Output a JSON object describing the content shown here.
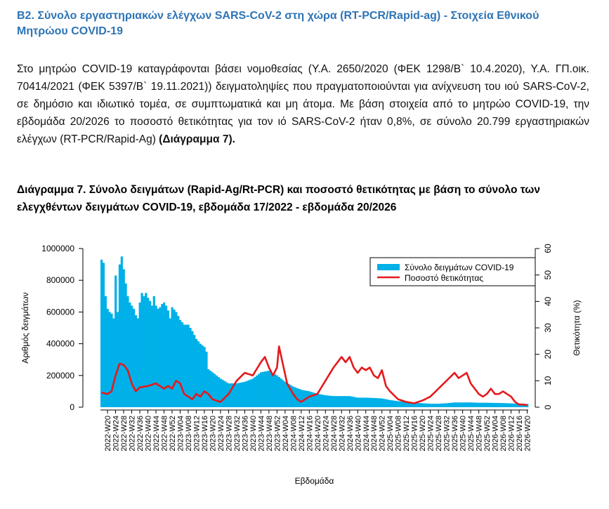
{
  "heading": "B2. Σύνολο εργαστηριακών ελέγχων SARS-CoV-2 στη χώρα (RT-PCR/Rapid-ag)  - Στοιχεία Εθνικού Μητρώου COVID-19",
  "paragraph": {
    "text": "Στο μητρώο COVID-19 καταγράφονται βάσει νομοθεσίας (Υ.Α. 2650/2020 (ΦΕΚ 1298/Β` 10.4.2020), Υ.Α. ΓΠ.οικ. 70414/2021 (ΦΕΚ 5397/Β` 19.11.2021)) δειγματοληψίες που πραγματοποιούνται για ανίχνευση του ιού SARS-CoV-2, σε δημόσιο και ιδιωτικό τομέα, σε συμπτωματικά και μη άτομα. Με βάση στοιχεία από το μητρώο COVID-19, την εβδομάδα 20/2026 το ποσοστό θετικότητας για τον ιό SARS-CoV-2 ήταν 0,8%, σε σύνολο 20.799 εργαστηριακών ελέγχων (RT-PCR/Rapid-Ag) ",
    "reference": "(Διάγραμμα 7)."
  },
  "caption": "Διάγραμμα 7. Σύνολο δειγμάτων (Rapid-Ag/Rt-PCR) και ποσοστό θετικότητας με βάση το σύνολο των ελεγχθέντων δειγμάτων COVID-19, εβδομάδα 17/2022 - εβδομάδα 20/2026",
  "chart_data": {
    "type": "bar+line",
    "xlabel": "Εβδομάδα",
    "ylabel_left": "Αριθμός δειγμάτων",
    "ylabel_right": "Θετικότητα (%)",
    "ylim_left": [
      0,
      1000000
    ],
    "ylim_right": [
      0,
      60
    ],
    "yticks_left": [
      "0",
      "200000",
      "400000",
      "600000",
      "800000",
      "1000000"
    ],
    "yticks_right": [
      "0",
      "10",
      "20",
      "30",
      "40",
      "50",
      "60"
    ],
    "legend_position": "top-right",
    "legend": [
      "Σύνολο δειγμάτων COVID-19",
      "Ποσοστό θετικότητας"
    ],
    "colors": {
      "bars": "#00b0e8",
      "line": "#e41a1c"
    },
    "x_tick_labels": [
      "2022-W20",
      "2022-W24",
      "2022-W28",
      "2022-W32",
      "2022-W36",
      "2022-W40",
      "2022-W44",
      "2022-W48",
      "2022-W52",
      "2023-W04",
      "2023-W08",
      "2023-W12",
      "2023-W16",
      "2023-W20",
      "2023-W24",
      "2023-W28",
      "2023-W32",
      "2023-W36",
      "2023-W40",
      "2023-W44",
      "2023-W48",
      "2023-W52",
      "2024-W04",
      "2024-W08",
      "2024-W12",
      "2024-W16",
      "2024-W20",
      "2024-W24",
      "2024-W28",
      "2024-W32",
      "2024-W36",
      "2024-W40",
      "2024-W44",
      "2024-W48",
      "2024-W52",
      "2025-W04",
      "2025-W08",
      "2025-W12",
      "2025-W16",
      "2025-W20",
      "2025-W24",
      "2025-W28",
      "2025-W32",
      "2025-W36",
      "2025-W40",
      "2025-W44",
      "2025-W48",
      "2025-W52",
      "2026-W04",
      "2026-W08",
      "2026-W12",
      "2026-W16",
      "2026-W20"
    ],
    "first_week": "2022-W17",
    "last_week": "2026-W20",
    "samples_anchors": [
      [
        "2022-W17",
        930000
      ],
      [
        "2022-W18",
        910000
      ],
      [
        "2022-W19",
        700000
      ],
      [
        "2022-W20",
        620000
      ],
      [
        "2022-W21",
        600000
      ],
      [
        "2022-W22",
        590000
      ],
      [
        "2022-W23",
        560000
      ],
      [
        "2022-W24",
        830000
      ],
      [
        "2022-W25",
        600000
      ],
      [
        "2022-W26",
        900000
      ],
      [
        "2022-W27",
        950000
      ],
      [
        "2022-W28",
        870000
      ],
      [
        "2022-W29",
        780000
      ],
      [
        "2022-W30",
        700000
      ],
      [
        "2022-W31",
        660000
      ],
      [
        "2022-W32",
        640000
      ],
      [
        "2022-W33",
        620000
      ],
      [
        "2022-W34",
        580000
      ],
      [
        "2022-W35",
        560000
      ],
      [
        "2022-W36",
        660000
      ],
      [
        "2022-W37",
        720000
      ],
      [
        "2022-W38",
        700000
      ],
      [
        "2022-W39",
        720000
      ],
      [
        "2022-W40",
        690000
      ],
      [
        "2022-W41",
        670000
      ],
      [
        "2022-W42",
        640000
      ],
      [
        "2022-W43",
        700000
      ],
      [
        "2022-W44",
        640000
      ],
      [
        "2022-W45",
        620000
      ],
      [
        "2022-W46",
        630000
      ],
      [
        "2022-W47",
        650000
      ],
      [
        "2022-W48",
        660000
      ],
      [
        "2022-W49",
        640000
      ],
      [
        "2022-W50",
        610000
      ],
      [
        "2022-W51",
        560000
      ],
      [
        "2022-W52",
        630000
      ],
      [
        "2023-W02",
        600000
      ],
      [
        "2023-W04",
        550000
      ],
      [
        "2023-W06",
        520000
      ],
      [
        "2023-W08",
        520000
      ],
      [
        "2023-W10",
        480000
      ],
      [
        "2023-W12",
        430000
      ],
      [
        "2023-W14",
        400000
      ],
      [
        "2023-W16",
        380000
      ],
      [
        "2023-W17",
        350000
      ],
      [
        "2023-W18",
        240000
      ],
      [
        "2023-W20",
        220000
      ],
      [
        "2023-W24",
        180000
      ],
      [
        "2023-W28",
        150000
      ],
      [
        "2023-W32",
        150000
      ],
      [
        "2023-W36",
        160000
      ],
      [
        "2023-W40",
        180000
      ],
      [
        "2023-W44",
        220000
      ],
      [
        "2023-W48",
        230000
      ],
      [
        "2023-W52",
        200000
      ],
      [
        "2024-W04",
        160000
      ],
      [
        "2024-W08",
        130000
      ],
      [
        "2024-W12",
        110000
      ],
      [
        "2024-W16",
        100000
      ],
      [
        "2024-W20",
        85000
      ],
      [
        "2024-W24",
        75000
      ],
      [
        "2024-W28",
        70000
      ],
      [
        "2024-W32",
        70000
      ],
      [
        "2024-W36",
        70000
      ],
      [
        "2024-W40",
        60000
      ],
      [
        "2024-W44",
        60000
      ],
      [
        "2024-W48",
        58000
      ],
      [
        "2024-W52",
        55000
      ],
      [
        "2025-W04",
        45000
      ],
      [
        "2025-W08",
        38000
      ],
      [
        "2025-W12",
        35000
      ],
      [
        "2025-W16",
        28000
      ],
      [
        "2025-W20",
        25000
      ],
      [
        "2025-W24",
        22000
      ],
      [
        "2025-W28",
        22000
      ],
      [
        "2025-W32",
        25000
      ],
      [
        "2025-W36",
        30000
      ],
      [
        "2025-W40",
        30000
      ],
      [
        "2025-W44",
        30000
      ],
      [
        "2025-W48",
        28000
      ],
      [
        "2025-W52",
        28000
      ],
      [
        "2026-W04",
        27000
      ],
      [
        "2026-W08",
        26000
      ],
      [
        "2026-W12",
        24000
      ],
      [
        "2026-W16",
        22000
      ],
      [
        "2026-W20",
        20799
      ]
    ],
    "positivity_anchors": [
      [
        "2022-W17",
        5.5
      ],
      [
        "2022-W20",
        5.0
      ],
      [
        "2022-W22",
        6.0
      ],
      [
        "2022-W24",
        12.0
      ],
      [
        "2022-W26",
        16.5
      ],
      [
        "2022-W28",
        16.0
      ],
      [
        "2022-W30",
        14.0
      ],
      [
        "2022-W32",
        9.0
      ],
      [
        "2022-W34",
        6.0
      ],
      [
        "2022-W36",
        7.5
      ],
      [
        "2022-W40",
        8.0
      ],
      [
        "2022-W44",
        9.0
      ],
      [
        "2022-W48",
        7.0
      ],
      [
        "2022-W50",
        8.0
      ],
      [
        "2022-W52",
        7.0
      ],
      [
        "2023-W02",
        10.0
      ],
      [
        "2023-W04",
        9.0
      ],
      [
        "2023-W06",
        5.0
      ],
      [
        "2023-W08",
        4.0
      ],
      [
        "2023-W10",
        3.0
      ],
      [
        "2023-W12",
        5.0
      ],
      [
        "2023-W14",
        4.0
      ],
      [
        "2023-W16",
        6.0
      ],
      [
        "2023-W18",
        5.0
      ],
      [
        "2023-W20",
        3.0
      ],
      [
        "2023-W24",
        2.0
      ],
      [
        "2023-W28",
        5.0
      ],
      [
        "2023-W32",
        10.0
      ],
      [
        "2023-W36",
        13.0
      ],
      [
        "2023-W40",
        12.0
      ],
      [
        "2023-W44",
        17.0
      ],
      [
        "2023-W46",
        19.0
      ],
      [
        "2023-W48",
        15.0
      ],
      [
        "2023-W50",
        12.0
      ],
      [
        "2023-W52",
        15.0
      ],
      [
        "2024-W01",
        23.0
      ],
      [
        "2024-W03",
        16.0
      ],
      [
        "2024-W05",
        9.0
      ],
      [
        "2024-W08",
        5.0
      ],
      [
        "2024-W10",
        3.0
      ],
      [
        "2024-W12",
        2.0
      ],
      [
        "2024-W16",
        4.0
      ],
      [
        "2024-W20",
        5.0
      ],
      [
        "2024-W24",
        10.0
      ],
      [
        "2024-W28",
        15.0
      ],
      [
        "2024-W30",
        17.0
      ],
      [
        "2024-W32",
        19.0
      ],
      [
        "2024-W34",
        17.0
      ],
      [
        "2024-W36",
        19.0
      ],
      [
        "2024-W38",
        15.0
      ],
      [
        "2024-W40",
        13.0
      ],
      [
        "2024-W42",
        15.0
      ],
      [
        "2024-W44",
        14.0
      ],
      [
        "2024-W46",
        15.0
      ],
      [
        "2024-W48",
        12.0
      ],
      [
        "2024-W50",
        11.0
      ],
      [
        "2024-W52",
        14.0
      ],
      [
        "2025-W02",
        8.0
      ],
      [
        "2025-W04",
        6.0
      ],
      [
        "2025-W08",
        3.0
      ],
      [
        "2025-W12",
        2.0
      ],
      [
        "2025-W16",
        1.5
      ],
      [
        "2025-W20",
        2.5
      ],
      [
        "2025-W24",
        4.0
      ],
      [
        "2025-W28",
        7.0
      ],
      [
        "2025-W32",
        10.0
      ],
      [
        "2025-W36",
        13.0
      ],
      [
        "2025-W38",
        11.0
      ],
      [
        "2025-W40",
        12.0
      ],
      [
        "2025-W42",
        13.0
      ],
      [
        "2025-W44",
        9.0
      ],
      [
        "2025-W46",
        7.0
      ],
      [
        "2025-W48",
        5.0
      ],
      [
        "2025-W50",
        4.0
      ],
      [
        "2025-W52",
        5.0
      ],
      [
        "2026-W02",
        7.0
      ],
      [
        "2026-W04",
        5.0
      ],
      [
        "2026-W06",
        5.0
      ],
      [
        "2026-W08",
        6.0
      ],
      [
        "2026-W10",
        5.0
      ],
      [
        "2026-W12",
        4.0
      ],
      [
        "2026-W14",
        2.0
      ],
      [
        "2026-W16",
        1.0
      ],
      [
        "2026-W18",
        1.0
      ],
      [
        "2026-W20",
        0.8
      ]
    ]
  }
}
